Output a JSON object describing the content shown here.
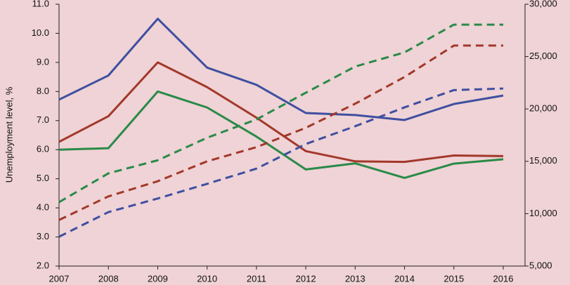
{
  "chart_data": {
    "type": "line",
    "ylabel": "Unemployment level, %",
    "categories": [
      "2007",
      "2008",
      "2009",
      "2010",
      "2011",
      "2012",
      "2013",
      "2014",
      "2015",
      "2016"
    ],
    "ylim": [
      2,
      11
    ],
    "yticks": [
      {
        "value": 2,
        "label": "2.0"
      },
      {
        "value": 3,
        "label": "3.0"
      },
      {
        "value": 4,
        "label": "4.0"
      },
      {
        "value": 5,
        "label": "5.0"
      },
      {
        "value": 6,
        "label": "6.0"
      },
      {
        "value": 7,
        "label": "7.0"
      },
      {
        "value": 8,
        "label": "8.0"
      },
      {
        "value": 9,
        "label": "9.0"
      },
      {
        "value": 10,
        "label": "10.0"
      },
      {
        "value": 11,
        "label": "11.0"
      }
    ],
    "y2lim": [
      5000,
      30000
    ],
    "y2ticks": [
      {
        "value": 5000,
        "label": "5,000"
      },
      {
        "value": 10000,
        "label": "10,000"
      },
      {
        "value": 15000,
        "label": "15,000"
      },
      {
        "value": 20000,
        "label": "20,000"
      },
      {
        "value": 25000,
        "label": "25,000"
      },
      {
        "value": 30000,
        "label": "30,000"
      }
    ],
    "series": [
      {
        "color": "#3f4fa0",
        "values": [
          7.72,
          8.55,
          10.5,
          8.82,
          8.23,
          7.26,
          7.19,
          7.02,
          7.57,
          7.86
        ]
      },
      {
        "color": "#a3382a",
        "values": [
          6.27,
          7.15,
          9.0,
          8.15,
          7.1,
          5.95,
          5.6,
          5.58,
          5.8,
          5.78
        ]
      },
      {
        "color": "#2a8a48",
        "values": [
          6.0,
          6.05,
          8.0,
          7.45,
          6.45,
          5.32,
          5.53,
          5.03,
          5.52,
          5.67
        ]
      },
      {
        "color": "#2a8a48",
        "dashed": true,
        "axis": "y2",
        "values": [
          11100,
          13850,
          15100,
          17250,
          19000,
          21550,
          24050,
          25400,
          28050,
          28050
        ]
      },
      {
        "color": "#a3382a",
        "dashed": true,
        "axis": "y2",
        "values": [
          9400,
          11650,
          13100,
          15000,
          16350,
          18200,
          20500,
          23050,
          26050,
          26050
        ]
      },
      {
        "color": "#3f4fa0",
        "dashed": true,
        "axis": "y2",
        "values": [
          7800,
          10150,
          11450,
          12850,
          14300,
          16650,
          18350,
          20150,
          21800,
          21950
        ]
      }
    ]
  }
}
